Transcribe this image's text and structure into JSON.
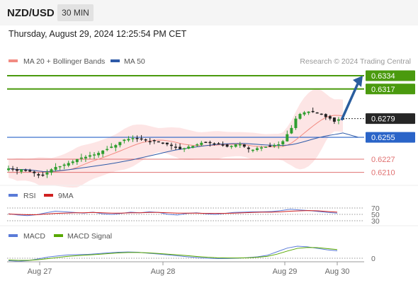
{
  "header": {
    "pair": "NZD/USD",
    "timeframe": "30 MIN",
    "datetime": "Thursday, August 29, 2024 12:25:54 PM CET"
  },
  "legend": {
    "ma20": "MA 20 + Bollinger Bands",
    "ma50": "MA 50",
    "credit": "Research © 2024 Trading Central",
    "rsi": "RSI",
    "rsi_ma": "9MA",
    "macd": "MACD",
    "macd_signal": "MACD Signal"
  },
  "colors": {
    "ma20": "#f28b82",
    "ma50": "#2e5aa8",
    "bollinger_fill": "#fde1e1",
    "resistance": "#4a9a0e",
    "pivot": "#2a64c8",
    "support": "#e07070",
    "last_price_bg": "#262626",
    "arrow": "#2a5d9e",
    "bull_candle": "#2f9e2f",
    "bear_candle": "#222222",
    "rsi": "#5a7bd8",
    "rsi_ma": "#d02020",
    "macd": "#5a7bd8",
    "macd_signal": "#57a800"
  },
  "chart_data": [
    {
      "type": "candlestick",
      "title": "NZD/USD 30 MIN",
      "x_labels": [
        "Aug 27",
        "Aug 28",
        "Aug 29",
        "Aug 30"
      ],
      "ylim": [
        0.6197,
        0.6344
      ],
      "price_levels": [
        {
          "value": 0.6334,
          "label": "0.6334",
          "kind": "resistance"
        },
        {
          "value": 0.6317,
          "label": "0.6317",
          "kind": "resistance"
        },
        {
          "value": 0.6279,
          "label": "0.6279",
          "kind": "last"
        },
        {
          "value": 0.6255,
          "label": "0.6255",
          "kind": "pivot"
        },
        {
          "value": 0.6227,
          "label": "0.6227",
          "kind": "support"
        },
        {
          "value": 0.621,
          "label": "0.6210",
          "kind": "support"
        }
      ],
      "projection": {
        "from": 0.6277,
        "to": 0.6334
      },
      "series": [
        {
          "name": "MA 20 + Bollinger Bands",
          "kind": "ma20"
        },
        {
          "name": "MA 50",
          "kind": "ma50"
        }
      ],
      "close_approx": [
        0.6215,
        0.6214,
        0.6212,
        0.6214,
        0.6213,
        0.6211,
        0.6209,
        0.6206,
        0.6207,
        0.621,
        0.6214,
        0.6217,
        0.6218,
        0.622,
        0.6222,
        0.6224,
        0.6227,
        0.6229,
        0.623,
        0.6232,
        0.6233,
        0.6235,
        0.6238,
        0.624,
        0.6243,
        0.6245,
        0.6249,
        0.6252,
        0.6253,
        0.6254,
        0.6253,
        0.6253,
        0.6251,
        0.625,
        0.625,
        0.6249,
        0.6248,
        0.6246,
        0.6244,
        0.6242,
        0.624,
        0.6241,
        0.6243,
        0.6244,
        0.6246,
        0.6248,
        0.6249,
        0.6248,
        0.6247,
        0.6246,
        0.6245,
        0.6243,
        0.6244,
        0.6246,
        0.6246,
        0.6243,
        0.624,
        0.6239,
        0.6241,
        0.6242,
        0.6243,
        0.6244,
        0.6245,
        0.6246,
        0.625,
        0.6259,
        0.6267,
        0.6279,
        0.6285,
        0.6287,
        0.6288,
        0.6288,
        0.6286,
        0.6284,
        0.6281,
        0.6279,
        0.6275,
        0.6278,
        0.6279
      ]
    },
    {
      "type": "line",
      "title": "RSI",
      "ylim": [
        30,
        70
      ],
      "y_ticks": [
        70,
        50,
        30
      ],
      "series": [
        {
          "name": "RSI",
          "values": [
            52,
            48,
            46,
            49,
            55,
            60,
            58,
            56,
            54,
            57,
            52,
            50,
            53,
            57,
            55,
            58,
            56,
            50,
            48,
            53,
            55,
            52,
            50,
            53,
            56,
            57,
            58,
            58,
            59,
            62,
            66,
            64,
            62,
            59,
            56,
            54
          ]
        },
        {
          "name": "9MA",
          "values": [
            51,
            50,
            49,
            49,
            51,
            53,
            54,
            55,
            55,
            56,
            55,
            54,
            54,
            55,
            55,
            56,
            56,
            55,
            54,
            54,
            54,
            53,
            53,
            53,
            54,
            55,
            56,
            57,
            57,
            58,
            60,
            61,
            62,
            61,
            59,
            57
          ]
        }
      ]
    },
    {
      "type": "line",
      "title": "MACD",
      "y_ticks": [
        0
      ],
      "series": [
        {
          "name": "MACD",
          "values": [
            -0.2,
            -0.25,
            -0.2,
            -0.05,
            0.1,
            0.2,
            0.28,
            0.3,
            0.32,
            0.38,
            0.45,
            0.5,
            0.52,
            0.5,
            0.42,
            0.35,
            0.28,
            0.2,
            0.12,
            0.05,
            0.0,
            -0.03,
            -0.02,
            0.0,
            0.05,
            0.12,
            0.25,
            0.55,
            0.85,
            1.0,
            0.95,
            0.82,
            0.7,
            0.62
          ]
        },
        {
          "name": "MACD Signal",
          "values": [
            -0.15,
            -0.18,
            -0.18,
            -0.12,
            -0.03,
            0.07,
            0.16,
            0.22,
            0.27,
            0.32,
            0.38,
            0.44,
            0.48,
            0.48,
            0.45,
            0.4,
            0.34,
            0.28,
            0.21,
            0.14,
            0.08,
            0.04,
            0.02,
            0.02,
            0.04,
            0.08,
            0.16,
            0.35,
            0.6,
            0.82,
            0.9,
            0.88,
            0.8,
            0.72
          ]
        }
      ]
    }
  ]
}
